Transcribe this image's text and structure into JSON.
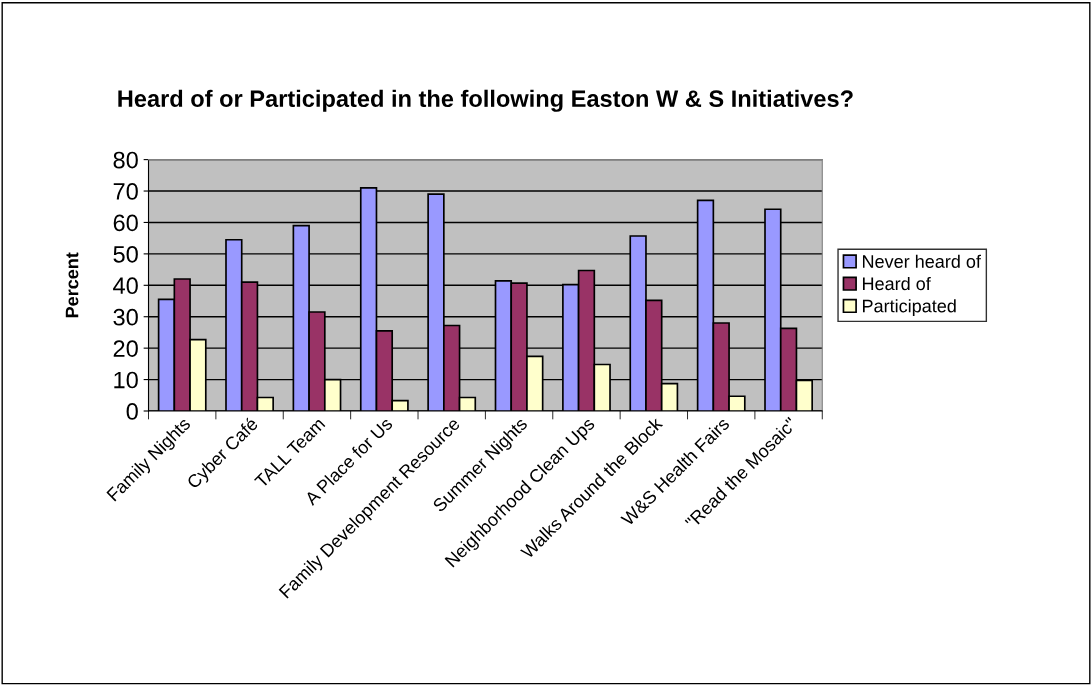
{
  "chart_data": {
    "type": "bar",
    "title": "Heard of or Participated in the following Easton W & S Initiatives?",
    "ylabel": "Percent",
    "categories": [
      "Family Nights",
      "Cyber Café",
      "TALL Team",
      "A Place for Us",
      "Family Development Resource",
      "Summer Nights",
      "Neighborhood Clean Ups",
      "Walks Around the Block",
      "W&S Health Fairs",
      "\"Read the Mosaic\""
    ],
    "series": [
      {
        "name": "Never heard of",
        "color": "#9999ff",
        "values": [
          35.5,
          54.5,
          59,
          71,
          69,
          41.4,
          40.2,
          55.7,
          67,
          64.2
        ]
      },
      {
        "name": "Heard of",
        "color": "#993366",
        "values": [
          42,
          41,
          31.5,
          25.5,
          27.2,
          40.7,
          44.7,
          35.2,
          28,
          26.3
        ]
      },
      {
        "name": "Participated",
        "color": "#ffffcc",
        "values": [
          22.7,
          4.3,
          10,
          3.3,
          4.3,
          17.4,
          14.8,
          8.7,
          4.7,
          9.7
        ]
      }
    ],
    "ylim": [
      0,
      80
    ],
    "yticks": [
      0,
      10,
      20,
      30,
      40,
      50,
      60,
      70,
      80
    ],
    "grid": "y",
    "legend": "right"
  }
}
